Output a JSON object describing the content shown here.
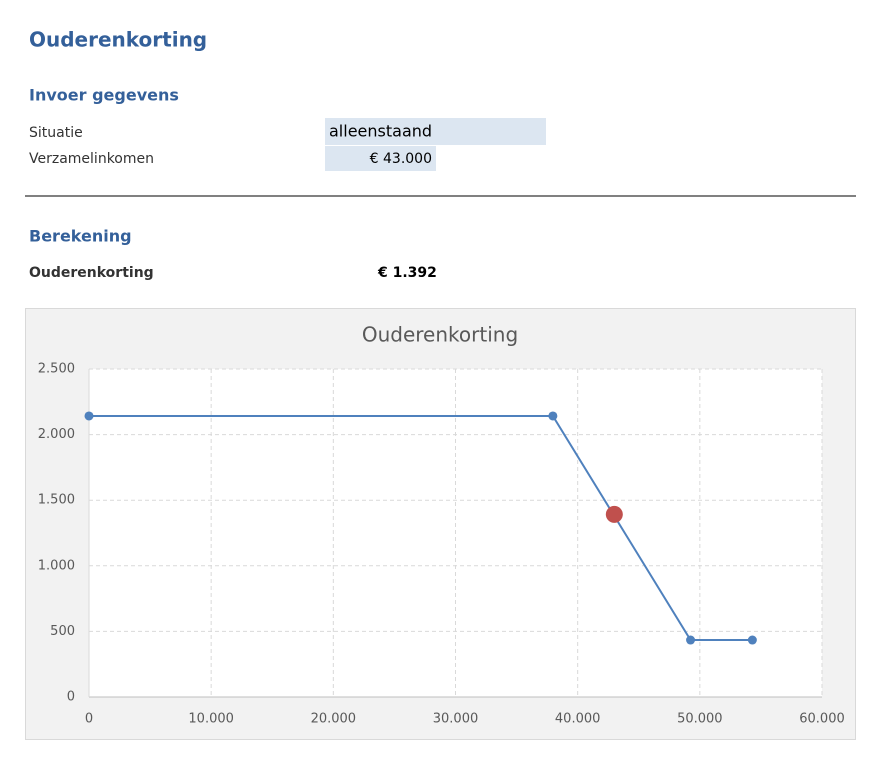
{
  "title": "Ouderenkorting",
  "input": {
    "heading": "Invoer gegevens",
    "rows": [
      [
        "Situatie",
        "alleenstaand"
      ],
      [
        "Verzamelinkomen",
        "€ 43.000"
      ]
    ]
  },
  "calculation": {
    "heading": "Berekening",
    "rows": [
      [
        "Ouderenkorting",
        "€ 1.392"
      ]
    ]
  },
  "chart_data": {
    "type": "line",
    "title": "Ouderenkorting",
    "series": [
      {
        "color": "#4f81bd",
        "line": true,
        "x": [
          0,
          37970,
          49240,
          54300
        ],
        "values": [
          2142,
          2142,
          434,
          434
        ]
      },
      {
        "color": "#c0504d",
        "line": false,
        "x": [
          43000
        ],
        "values": [
          1392
        ]
      }
    ],
    "xlim": [
      0,
      60000
    ],
    "xticks": [
      0,
      {
        "value": 10000,
        "label": "10.000"
      },
      {
        "value": 20000,
        "label": "20.000"
      },
      {
        "value": 30000,
        "label": "30.000"
      },
      {
        "value": 40000,
        "label": "40.000"
      },
      {
        "value": 50000,
        "label": "50.000"
      },
      {
        "value": 60000,
        "label": "60.000"
      }
    ],
    "ylim": [
      0,
      2500
    ],
    "yticks": [
      0,
      500,
      {
        "value": 1000,
        "label": "1.000"
      },
      {
        "value": 1500,
        "label": "1.500"
      },
      {
        "value": 2000,
        "label": "2.000"
      },
      {
        "value": 2500,
        "label": "2.500"
      }
    ],
    "grid": true
  }
}
